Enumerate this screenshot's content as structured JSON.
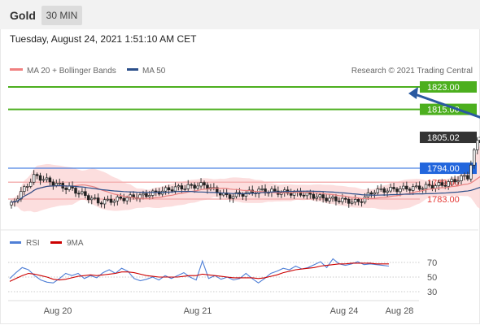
{
  "header": {
    "title": "Gold",
    "timeframe": "30 MIN"
  },
  "subheader": {
    "datetime": "Tuesday, August 24, 2021 1:51:10 AM CET"
  },
  "legend": {
    "main": [
      {
        "label": "MA 20 + Bollinger Bands",
        "color": "#f08080"
      },
      {
        "label": "MA 50",
        "color": "#2b4f8a"
      }
    ],
    "credit": "Research © 2021 Trading Central",
    "rsi": [
      {
        "label": "RSI",
        "color": "#4f7fd6"
      },
      {
        "label": "9MA",
        "color": "#cc0000"
      }
    ]
  },
  "chart_data": [
    {
      "type": "candlestick",
      "instrument": "Gold",
      "interval": "30 MIN",
      "x_ticks": [
        "Aug 20",
        "Aug 21",
        "Aug 24",
        "Aug 28"
      ],
      "ylim": [
        1778,
        1826
      ],
      "current_price": 1805.02,
      "levels": [
        {
          "value": 1823.0,
          "label": "1823.00",
          "kind": "resistance",
          "color": "#4caf1e"
        },
        {
          "value": 1815.0,
          "label": "1815.00",
          "kind": "resistance",
          "color": "#4caf1e"
        },
        {
          "value": 1805.02,
          "label": "1805.02",
          "kind": "last",
          "color": "#333333"
        },
        {
          "value": 1794.0,
          "label": "1794.00",
          "kind": "pivot",
          "color": "#2266dd"
        },
        {
          "value": 1789.0,
          "label": "1789.00",
          "kind": "support",
          "color": "#e53935"
        },
        {
          "value": 1783.0,
          "label": "1783.00",
          "kind": "support",
          "color": "#e53935"
        }
      ],
      "forecast": {
        "from": 1805.02,
        "to": 1823.0,
        "color": "#2b5aa0"
      },
      "ohlc_segments": [
        {
          "from": 1781,
          "to": 1791,
          "len": 8
        },
        {
          "from": 1791,
          "to": 1787,
          "len": 10
        },
        {
          "from": 1787,
          "to": 1782,
          "len": 10
        },
        {
          "from": 1782,
          "to": 1784,
          "len": 12
        },
        {
          "from": 1784,
          "to": 1787,
          "len": 12
        },
        {
          "from": 1787,
          "to": 1788,
          "len": 8
        },
        {
          "from": 1788,
          "to": 1784,
          "len": 8
        },
        {
          "from": 1784,
          "to": 1786,
          "len": 10
        },
        {
          "from": 1786,
          "to": 1785,
          "len": 12
        },
        {
          "from": 1785,
          "to": 1783,
          "len": 10
        },
        {
          "from": 1783,
          "to": 1782,
          "len": 8
        },
        {
          "from": 1782,
          "to": 1786,
          "len": 6
        },
        {
          "from": 1786,
          "to": 1787,
          "len": 12
        },
        {
          "from": 1787,
          "to": 1788,
          "len": 8
        },
        {
          "from": 1788,
          "to": 1791,
          "len": 8
        },
        {
          "from": 1791,
          "to": 1804,
          "len": 4
        },
        {
          "from": 1804,
          "to": 1805,
          "len": 18
        }
      ]
    },
    {
      "type": "line",
      "title": "RSI",
      "y_ticks": [
        70,
        50,
        30
      ],
      "ylim": [
        20,
        80
      ],
      "series": [
        {
          "name": "RSI",
          "color": "#4f7fd6",
          "values": [
            48,
            56,
            63,
            60,
            52,
            46,
            43,
            42,
            48,
            55,
            52,
            55,
            48,
            52,
            49,
            56,
            60,
            55,
            62,
            58,
            48,
            45,
            47,
            50,
            46,
            52,
            48,
            52,
            56,
            50,
            46,
            72,
            48,
            52,
            47,
            50,
            46,
            48,
            55,
            48,
            42,
            48,
            55,
            58,
            62,
            60,
            65,
            61,
            63,
            67,
            71,
            63,
            75,
            68,
            66,
            68,
            71,
            67,
            68,
            67,
            66,
            65
          ]
        },
        {
          "name": "9MA",
          "color": "#cc0000",
          "values": [
            44,
            48,
            52,
            55,
            54,
            52,
            50,
            47,
            46,
            47,
            49,
            51,
            52,
            53,
            52,
            53,
            54,
            55,
            57,
            57,
            56,
            54,
            52,
            51,
            50,
            50,
            50,
            50,
            51,
            52,
            52,
            54,
            53,
            52,
            51,
            50,
            49,
            49,
            49,
            49,
            48,
            49,
            51,
            53,
            56,
            58,
            60,
            61,
            62,
            63,
            65,
            66,
            67,
            68,
            68,
            69,
            69,
            69,
            69,
            68,
            68,
            68
          ]
        }
      ]
    }
  ]
}
